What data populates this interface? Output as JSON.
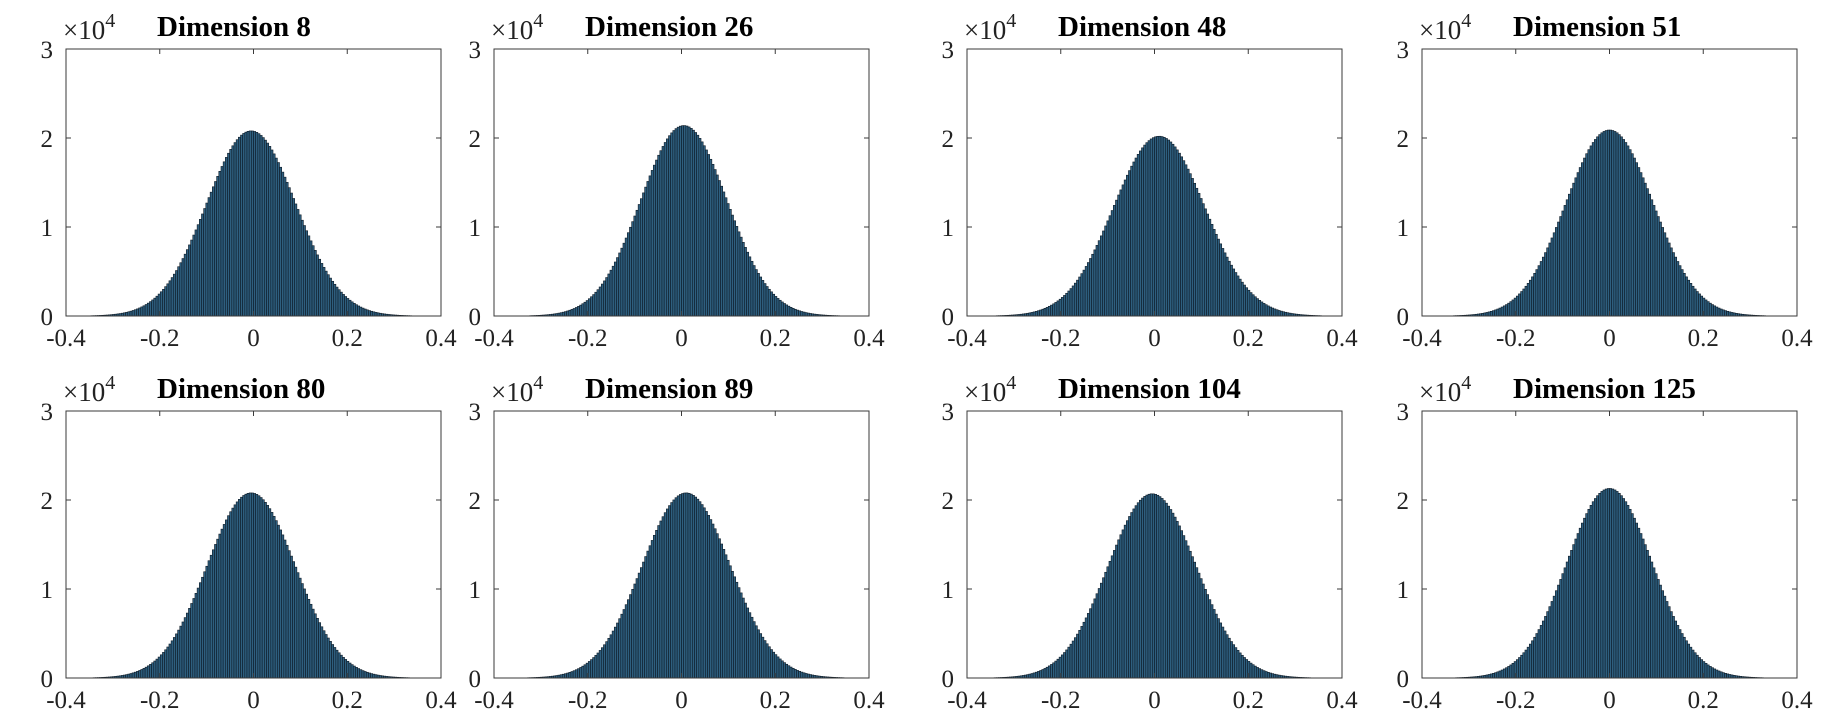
{
  "chart_data": [
    {
      "type": "bar",
      "title": "Dimension 8",
      "y_multiplier": "×10",
      "y_exponent": "4",
      "xlim": [
        -0.4,
        0.4
      ],
      "ylim": [
        0,
        3
      ],
      "xticks": [
        "-0.4",
        "-0.2",
        "0",
        "0.2",
        "0.4"
      ],
      "yticks": [
        "0",
        "1",
        "2",
        "3"
      ],
      "series": [
        {
          "mean": -0.005,
          "std": 0.095,
          "peak": 2.08
        }
      ],
      "bar_color": "#2e5f7f"
    },
    {
      "type": "bar",
      "title": "Dimension 26",
      "y_multiplier": "×10",
      "y_exponent": "4",
      "xlim": [
        -0.4,
        0.4
      ],
      "ylim": [
        0,
        3
      ],
      "xticks": [
        "-0.4",
        "-0.2",
        "0",
        "0.2",
        "0.4"
      ],
      "yticks": [
        "0",
        "1",
        "2",
        "3"
      ],
      "series": [
        {
          "mean": 0.005,
          "std": 0.092,
          "peak": 2.14
        }
      ],
      "bar_color": "#2e5f7f"
    },
    {
      "type": "bar",
      "title": "Dimension 48",
      "y_multiplier": "×10",
      "y_exponent": "4",
      "xlim": [
        -0.4,
        0.4
      ],
      "ylim": [
        0,
        3
      ],
      "xticks": [
        "-0.4",
        "-0.2",
        "0",
        "0.2",
        "0.4"
      ],
      "yticks": [
        "0",
        "1",
        "2",
        "3"
      ],
      "series": [
        {
          "mean": 0.01,
          "std": 0.097,
          "peak": 2.02
        }
      ],
      "bar_color": "#2e5f7f"
    },
    {
      "type": "bar",
      "title": "Dimension 51",
      "y_multiplier": "×10",
      "y_exponent": "4",
      "xlim": [
        -0.4,
        0.4
      ],
      "ylim": [
        0,
        3
      ],
      "xticks": [
        "-0.4",
        "-0.2",
        "0",
        "0.2",
        "0.4"
      ],
      "yticks": [
        "0",
        "1",
        "2",
        "3"
      ],
      "series": [
        {
          "mean": 0.0,
          "std": 0.093,
          "peak": 2.09
        }
      ],
      "bar_color": "#2e5f7f"
    },
    {
      "type": "bar",
      "title": "Dimension 80",
      "y_multiplier": "×10",
      "y_exponent": "4",
      "xlim": [
        -0.4,
        0.4
      ],
      "ylim": [
        0,
        3
      ],
      "xticks": [
        "-0.4",
        "-0.2",
        "0",
        "0.2",
        "0.4"
      ],
      "yticks": [
        "0",
        "1",
        "2",
        "3"
      ],
      "series": [
        {
          "mean": -0.005,
          "std": 0.094,
          "peak": 2.08
        }
      ],
      "bar_color": "#2e5f7f"
    },
    {
      "type": "bar",
      "title": "Dimension 89",
      "y_multiplier": "×10",
      "y_exponent": "4",
      "xlim": [
        -0.4,
        0.4
      ],
      "ylim": [
        0,
        3
      ],
      "xticks": [
        "-0.4",
        "-0.2",
        "0",
        "0.2",
        "0.4"
      ],
      "yticks": [
        "0",
        "1",
        "2",
        "3"
      ],
      "series": [
        {
          "mean": 0.01,
          "std": 0.094,
          "peak": 2.08
        }
      ],
      "bar_color": "#2e5f7f"
    },
    {
      "type": "bar",
      "title": "Dimension 104",
      "y_multiplier": "×10",
      "y_exponent": "4",
      "xlim": [
        -0.4,
        0.4
      ],
      "ylim": [
        0,
        3
      ],
      "xticks": [
        "-0.4",
        "-0.2",
        "0",
        "0.2",
        "0.4"
      ],
      "yticks": [
        "0",
        "1",
        "2",
        "3"
      ],
      "series": [
        {
          "mean": -0.005,
          "std": 0.094,
          "peak": 2.07
        }
      ],
      "bar_color": "#2e5f7f"
    },
    {
      "type": "bar",
      "title": "Dimension 125",
      "y_multiplier": "×10",
      "y_exponent": "4",
      "xlim": [
        -0.4,
        0.4
      ],
      "ylim": [
        0,
        3
      ],
      "xticks": [
        "-0.4",
        "-0.2",
        "0",
        "0.2",
        "0.4"
      ],
      "yticks": [
        "0",
        "1",
        "2",
        "3"
      ],
      "series": [
        {
          "mean": 0.0,
          "std": 0.091,
          "peak": 2.13
        }
      ],
      "bar_color": "#2e5f7f"
    }
  ]
}
